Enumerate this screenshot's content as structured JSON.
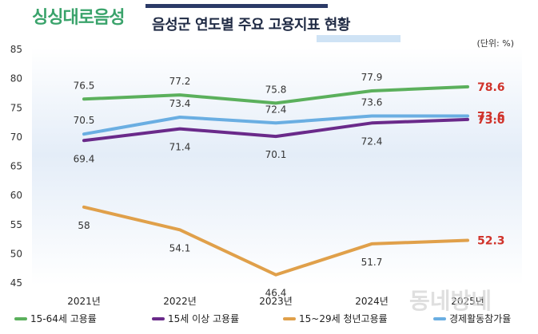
{
  "header": {
    "logo_text": "싱싱대로음성",
    "title": "음성군 연도별 주요 고용지표 현황",
    "unit": "(단위: %)"
  },
  "watermark": "동네방네",
  "chart_data": {
    "type": "line",
    "title": "음성군 연도별 주요 고용지표 현황",
    "xlabel": "",
    "ylabel": "",
    "categories": [
      "2021년",
      "2022년",
      "2023년",
      "2024년",
      "2025년"
    ],
    "yticks": [
      45,
      50,
      55,
      60,
      65,
      70,
      75,
      80,
      85
    ],
    "ylim": [
      45,
      85
    ],
    "grid": false,
    "legend_position": "bottom",
    "series": [
      {
        "name": "15-64세 고용률",
        "color": "#5bb05c",
        "values": [
          76.5,
          77.2,
          75.8,
          77.9,
          78.6
        ],
        "labels": [
          "76.5",
          "77.2",
          "75.8",
          "77.9",
          "78.6"
        ],
        "label_side": "above"
      },
      {
        "name": "15세 이상 고용률",
        "color": "#6a2a8a",
        "values": [
          69.4,
          71.4,
          70.1,
          72.4,
          73.0
        ],
        "labels": [
          "69.4",
          "71.4",
          "70.1",
          "72.4",
          "73.0"
        ],
        "label_side": "below"
      },
      {
        "name": "15~29세 청년고용률",
        "color": "#e0a04a",
        "values": [
          58,
          54.1,
          46.4,
          51.7,
          52.3
        ],
        "labels": [
          "58",
          "54.1",
          "46.4",
          "51.7",
          "52.3"
        ],
        "label_side": "below"
      },
      {
        "name": "경제활동참가율",
        "color": "#6aaee2",
        "values": [
          70.5,
          73.4,
          72.4,
          73.6,
          73.6
        ],
        "labels": [
          "70.5",
          "73.4",
          "72.4",
          "73.6",
          "73.6"
        ],
        "label_side": "above"
      }
    ],
    "highlight_color": "#d0332b"
  }
}
